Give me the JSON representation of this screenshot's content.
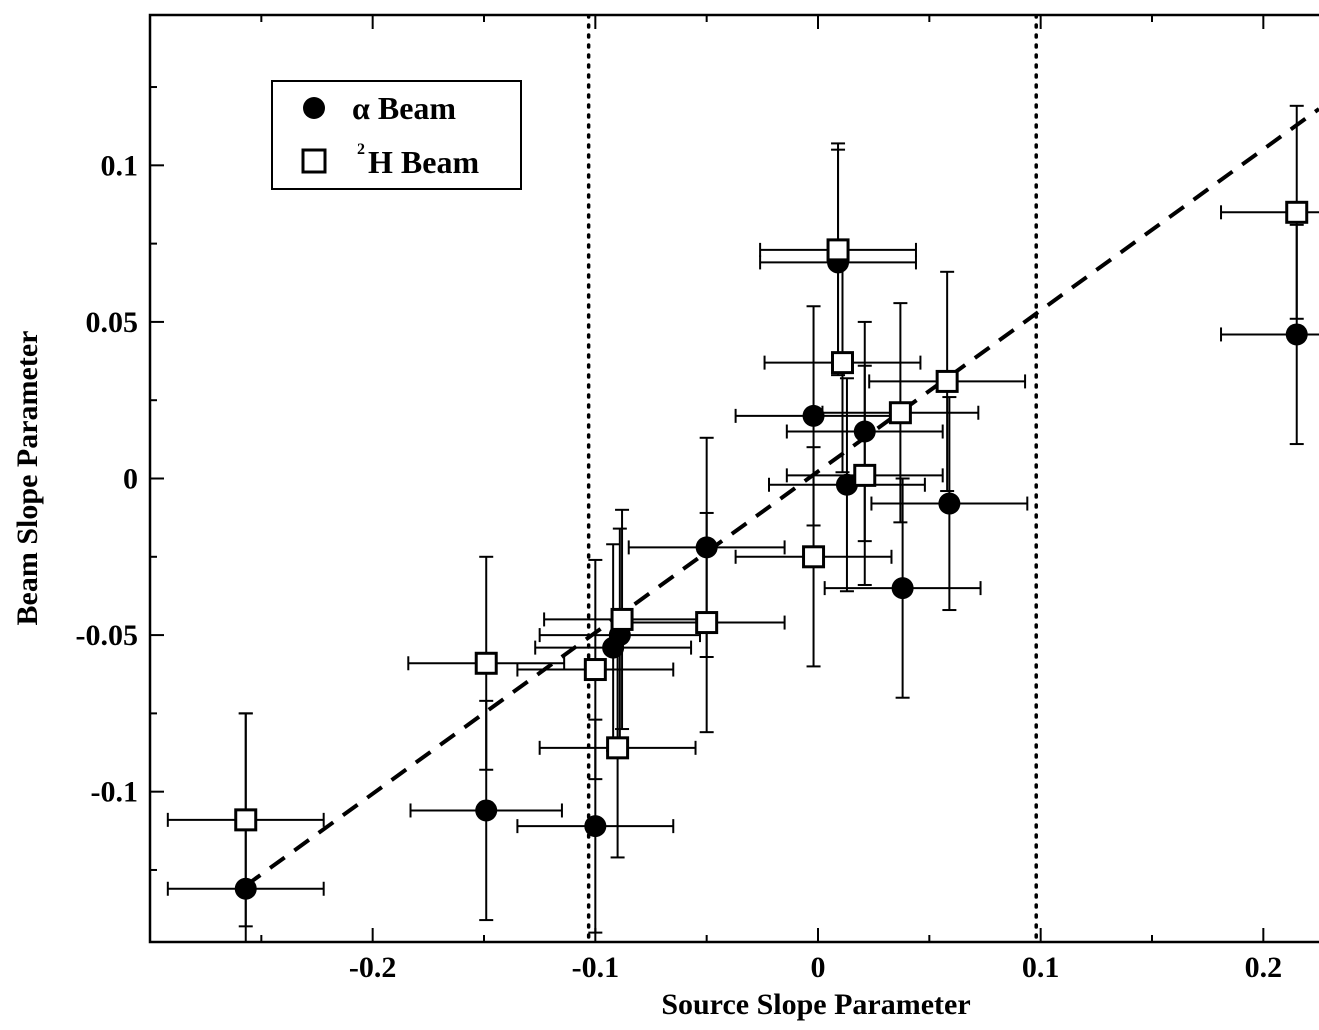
{
  "chart_data": {
    "type": "scatter",
    "xlabel": "Source Slope Parameter",
    "ylabel": "Beam Slope Parameter",
    "xlim": [
      -0.3,
      0.225
    ],
    "ylim": [
      -0.148,
      0.148
    ],
    "x_ticks": [
      {
        "value": -0.2,
        "label": "-0.2"
      },
      {
        "value": -0.1,
        "label": "-0.1"
      },
      {
        "value": 0,
        "label": "0"
      },
      {
        "value": 0.1,
        "label": "0.1"
      },
      {
        "value": 0.2,
        "label": "0.2"
      }
    ],
    "y_ticks": [
      {
        "value": -0.1,
        "label": "-0.1"
      },
      {
        "value": -0.05,
        "label": "-0.05"
      },
      {
        "value": 0,
        "label": "0"
      },
      {
        "value": 0.05,
        "label": "0.05"
      },
      {
        "value": 0.1,
        "label": "0.1"
      }
    ],
    "x_minor_step": 0.05,
    "y_minor_step": 0.025,
    "grid": false,
    "legend": {
      "position": "top-left"
    },
    "series": [
      {
        "name": "α Beam",
        "marker": "filled-circle",
        "color": "#000000",
        "points": [
          {
            "x": -0.257,
            "y": -0.131,
            "xerr": 0.035,
            "yerr": 0.056
          },
          {
            "x": -0.149,
            "y": -0.106,
            "xerr": 0.034,
            "yerr": 0.035
          },
          {
            "x": -0.1,
            "y": -0.111,
            "xerr": 0.035,
            "yerr": 0.034
          },
          {
            "x": -0.092,
            "y": -0.054,
            "xerr": 0.035,
            "yerr": 0.033
          },
          {
            "x": -0.089,
            "y": -0.05,
            "xerr": 0.036,
            "yerr": 0.034
          },
          {
            "x": -0.05,
            "y": -0.022,
            "xerr": 0.035,
            "yerr": 0.035
          },
          {
            "x": -0.002,
            "y": 0.02,
            "xerr": 0.035,
            "yerr": 0.035
          },
          {
            "x": 0.009,
            "y": 0.069,
            "xerr": 0.035,
            "yerr": 0.036
          },
          {
            "x": 0.013,
            "y": -0.002,
            "xerr": 0.035,
            "yerr": 0.034
          },
          {
            "x": 0.021,
            "y": 0.015,
            "xerr": 0.035,
            "yerr": 0.035
          },
          {
            "x": 0.038,
            "y": -0.035,
            "xerr": 0.035,
            "yerr": 0.035
          },
          {
            "x": 0.059,
            "y": -0.008,
            "xerr": 0.035,
            "yerr": 0.034
          },
          {
            "x": 0.215,
            "y": 0.046,
            "xerr": 0.034,
            "yerr": 0.035
          }
        ]
      },
      {
        "name": "2H Beam",
        "name_superscript": "2",
        "name_text": "H Beam",
        "marker": "open-square",
        "color": "#000000",
        "points": [
          {
            "x": -0.257,
            "y": -0.109,
            "xerr": 0.035,
            "yerr": 0.034
          },
          {
            "x": -0.149,
            "y": -0.059,
            "xerr": 0.035,
            "yerr": 0.034
          },
          {
            "x": -0.1,
            "y": -0.061,
            "xerr": 0.035,
            "yerr": 0.035
          },
          {
            "x": -0.09,
            "y": -0.086,
            "xerr": 0.035,
            "yerr": 0.035
          },
          {
            "x": -0.088,
            "y": -0.045,
            "xerr": 0.035,
            "yerr": 0.035
          },
          {
            "x": -0.05,
            "y": -0.046,
            "xerr": 0.035,
            "yerr": 0.035
          },
          {
            "x": -0.002,
            "y": -0.025,
            "xerr": 0.035,
            "yerr": 0.035
          },
          {
            "x": 0.009,
            "y": 0.073,
            "xerr": 0.035,
            "yerr": 0.034
          },
          {
            "x": 0.011,
            "y": 0.037,
            "xerr": 0.035,
            "yerr": 0.035
          },
          {
            "x": 0.021,
            "y": 0.001,
            "xerr": 0.035,
            "yerr": 0.035
          },
          {
            "x": 0.037,
            "y": 0.021,
            "xerr": 0.035,
            "yerr": 0.035
          },
          {
            "x": 0.058,
            "y": 0.031,
            "xerr": 0.035,
            "yerr": 0.035
          },
          {
            "x": 0.215,
            "y": 0.085,
            "xerr": 0.034,
            "yerr": 0.034
          }
        ]
      }
    ],
    "reference_lines": [
      {
        "kind": "fit",
        "style": "dashed",
        "x1": -0.257,
        "y1": -0.13,
        "x2": 0.225,
        "y2": 0.118
      },
      {
        "kind": "vertical",
        "style": "dotted",
        "x": -0.103
      },
      {
        "kind": "vertical",
        "style": "dotted",
        "x": 0.098
      }
    ]
  }
}
